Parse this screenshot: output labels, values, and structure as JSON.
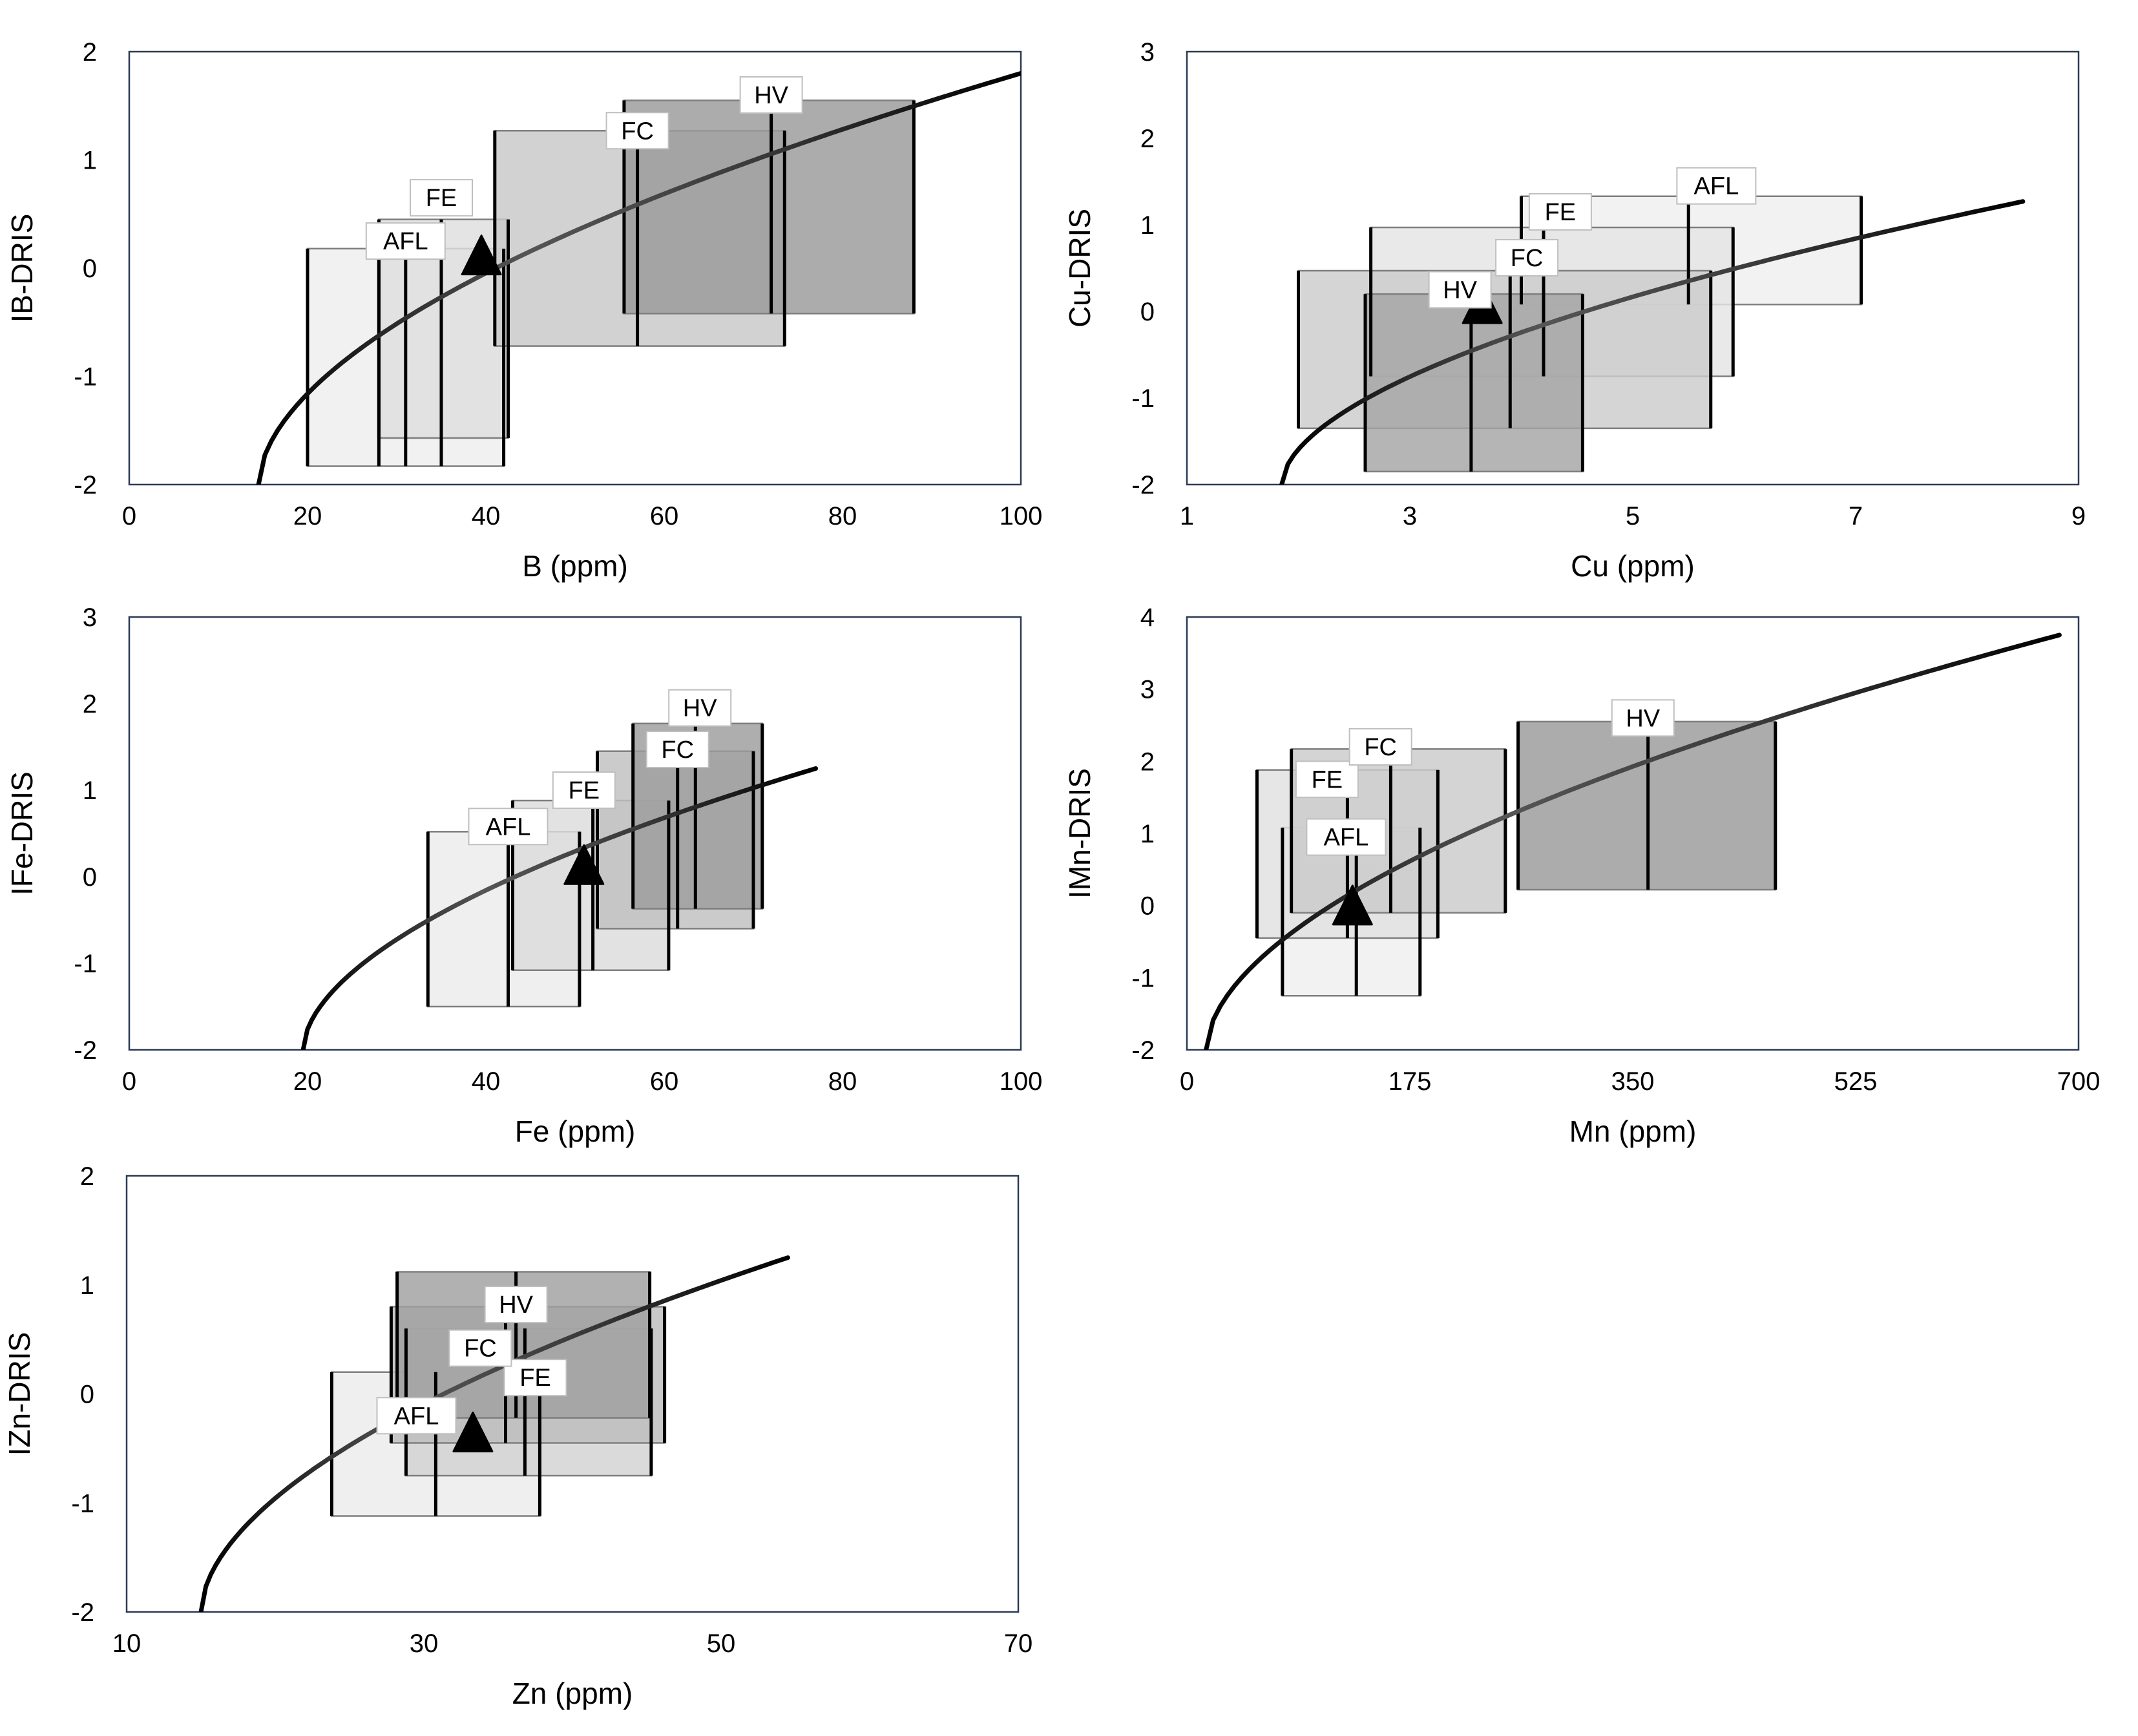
{
  "chart_data": [
    {
      "type": "box-range",
      "panel": "B",
      "xlabel": "B (ppm)",
      "ylabel": "IB-DRIS",
      "xlim": [
        0,
        100
      ],
      "ylim": [
        -2,
        2
      ],
      "xticks": [
        0,
        20,
        40,
        60,
        80,
        100
      ],
      "yticks": [
        -2,
        -1,
        0,
        1,
        2
      ],
      "curve": {
        "x_start": 14.5,
        "x_end": 100,
        "a": 0.57,
        "b": 3.3,
        "c": 0.35
      },
      "marker": {
        "x": 39.5,
        "y": 0.05
      },
      "boxes": [
        {
          "label": "AFL",
          "xmin": 20,
          "xmax": 42,
          "ymin": -1.83,
          "ymax": 0.18,
          "lines": [
            20,
            28,
            31,
            35,
            42
          ],
          "color": "#eeeeee",
          "label_x": 31,
          "label_y": 0.25
        },
        {
          "label": "FE",
          "xmin": 28,
          "xmax": 42.5,
          "ymin": -1.57,
          "ymax": 0.45,
          "lines": [
            28,
            35,
            42.5
          ],
          "color": "#dedede",
          "label_x": 35,
          "label_y": 0.65
        },
        {
          "label": "FC",
          "xmin": 41,
          "xmax": 73.5,
          "ymin": -0.72,
          "ymax": 1.27,
          "lines": [
            41,
            57,
            73.5
          ],
          "color": "#c8c8c8",
          "label_x": 57,
          "label_y": 1.27
        },
        {
          "label": "HV",
          "xmin": 55.5,
          "xmax": 88,
          "ymin": -0.42,
          "ymax": 1.55,
          "lines": [
            55.5,
            72,
            88
          ],
          "color": "#9a9a9a",
          "label_x": 72,
          "label_y": 1.6
        }
      ]
    },
    {
      "type": "box-range",
      "panel": "Cu",
      "xlabel": "Cu (ppm)",
      "ylabel": "Cu-DRIS",
      "xlim": [
        1,
        9
      ],
      "ylim": [
        -2,
        3
      ],
      "xticks": [
        1,
        3,
        5,
        7,
        9
      ],
      "yticks": [
        -2,
        -1,
        0,
        1,
        2,
        3
      ],
      "curve": {
        "x_start": 1.85,
        "x_end": 8.5,
        "a": 0.57,
        "b": 2.88,
        "c": 0.35
      },
      "marker": {
        "x": 3.65,
        "y": 0.0
      },
      "boxes": [
        {
          "label": "AFL",
          "xmin": 4.0,
          "xmax": 7.05,
          "ymin": 0.08,
          "ymax": 1.33,
          "lines": [
            4.0,
            5.5,
            7.05
          ],
          "color": "#efefef",
          "label_x": 5.75,
          "label_y": 1.45
        },
        {
          "label": "FE",
          "xmin": 2.65,
          "xmax": 5.9,
          "ymin": -0.75,
          "ymax": 0.97,
          "lines": [
            2.65,
            4.2,
            5.9
          ],
          "color": "#e4e4e4",
          "label_x": 4.35,
          "label_y": 1.15
        },
        {
          "label": "FC",
          "xmin": 2.0,
          "xmax": 5.7,
          "ymin": -1.35,
          "ymax": 0.47,
          "lines": [
            2.0,
            3.9,
            5.7
          ],
          "color": "#cccccc",
          "label_x": 4.05,
          "label_y": 0.62
        },
        {
          "label": "HV",
          "xmin": 2.6,
          "xmax": 4.55,
          "ymin": -1.85,
          "ymax": 0.2,
          "lines": [
            2.6,
            3.55,
            4.55
          ],
          "color": "#a5a5a5",
          "label_x": 3.45,
          "label_y": 0.25
        }
      ]
    },
    {
      "type": "box-range",
      "panel": "Fe",
      "xlabel": "Fe (ppm)",
      "ylabel": "IFe-DRIS",
      "xlim": [
        0,
        100
      ],
      "ylim": [
        -2,
        3
      ],
      "xticks": [
        0,
        20,
        40,
        60,
        80,
        100
      ],
      "yticks": [
        -2,
        -1,
        0,
        1,
        2,
        3
      ],
      "curve": {
        "x_start": 19.5,
        "x_end": 77,
        "a": 0.57,
        "b": 3.3,
        "c": 0.35
      },
      "marker": {
        "x": 51,
        "y": 0.05
      },
      "boxes": [
        {
          "label": "AFL",
          "xmin": 33.5,
          "xmax": 50.5,
          "ymin": -1.5,
          "ymax": 0.52,
          "lines": [
            33.5,
            42.5,
            50.5
          ],
          "color": "#ececec",
          "label_x": 42.5,
          "label_y": 0.58
        },
        {
          "label": "FE",
          "xmin": 43,
          "xmax": 60.5,
          "ymin": -1.08,
          "ymax": 0.88,
          "lines": [
            43,
            52,
            60.5
          ],
          "color": "#dcdcdc",
          "label_x": 51,
          "label_y": 1.0
        },
        {
          "label": "FC",
          "xmin": 52.5,
          "xmax": 70,
          "ymin": -0.6,
          "ymax": 1.45,
          "lines": [
            52.5,
            61.5,
            70
          ],
          "color": "#c0c0c0",
          "label_x": 61.5,
          "label_y": 1.47
        },
        {
          "label": "HV",
          "xmin": 56.5,
          "xmax": 71,
          "ymin": -0.37,
          "ymax": 1.77,
          "lines": [
            56.5,
            63.5,
            71
          ],
          "color": "#9c9c9c",
          "label_x": 64,
          "label_y": 1.95
        }
      ]
    },
    {
      "type": "box-range",
      "panel": "Mn",
      "xlabel": "Mn (ppm)",
      "ylabel": "IMn-DRIS",
      "xlim": [
        0,
        700
      ],
      "ylim": [
        -2,
        4
      ],
      "xticks": [
        0,
        175,
        350,
        525,
        700
      ],
      "yticks": [
        -2,
        -1,
        0,
        1,
        2,
        3,
        4
      ],
      "curve": {
        "x_start": 15,
        "x_end": 685,
        "a": 0.57,
        "b": 3.3,
        "c": 0.35
      },
      "marker": {
        "x": 130,
        "y": -0.1
      },
      "boxes": [
        {
          "label": "AFL",
          "xmin": 75,
          "xmax": 183,
          "ymin": -1.25,
          "ymax": 1.08,
          "lines": [
            75,
            133,
            183
          ],
          "color": "#efefef",
          "label_x": 125,
          "label_y": 0.95
        },
        {
          "label": "FE",
          "xmin": 55,
          "xmax": 197,
          "ymin": -0.45,
          "ymax": 1.88,
          "lines": [
            55,
            126,
            197
          ],
          "color": "#e0e0e0",
          "label_x": 110,
          "label_y": 1.75
        },
        {
          "label": "FC",
          "xmin": 82,
          "xmax": 250,
          "ymin": -0.1,
          "ymax": 2.17,
          "lines": [
            82,
            160,
            250
          ],
          "color": "#cbcbcb",
          "label_x": 152,
          "label_y": 2.2
        },
        {
          "label": "HV",
          "xmin": 260,
          "xmax": 462,
          "ymin": 0.22,
          "ymax": 2.55,
          "lines": [
            260,
            362,
            462
          ],
          "color": "#9a9a9a",
          "label_x": 358,
          "label_y": 2.6
        }
      ]
    },
    {
      "type": "box-range",
      "panel": "Zn",
      "xlabel": "Zn (ppm)",
      "ylabel": "IZn-DRIS",
      "xlim": [
        10,
        70
      ],
      "ylim": [
        -2,
        2
      ],
      "xticks": [
        10,
        30,
        50,
        70
      ],
      "yticks": [
        -2,
        -1,
        0,
        1,
        2
      ],
      "curve": {
        "x_start": 15,
        "x_end": 54.5,
        "a": 0.57,
        "b": 3.3,
        "c": 0.35
      },
      "marker": {
        "x": 33.3,
        "y": -0.42
      },
      "boxes": [
        {
          "label": "AFL",
          "xmin": 23.8,
          "xmax": 37.8,
          "ymin": -1.12,
          "ymax": 0.2,
          "lines": [
            23.8,
            30.8,
            37.8
          ],
          "color": "#ececec",
          "label_x": 29.5,
          "label_y": -0.2
        },
        {
          "label": "FE",
          "xmin": 28.8,
          "xmax": 45.3,
          "ymin": -0.75,
          "ymax": 0.6,
          "lines": [
            28.8,
            36.8,
            45.3
          ],
          "color": "#d2d2d2",
          "label_x": 37.5,
          "label_y": 0.15
        },
        {
          "label": "FC",
          "xmin": 27.8,
          "xmax": 46.2,
          "ymin": -0.45,
          "ymax": 0.8,
          "lines": [
            27.8,
            35.5,
            46.2
          ],
          "color": "#bcbcbc",
          "label_x": 33.8,
          "label_y": 0.42
        },
        {
          "label": "HV",
          "xmin": 28.2,
          "xmax": 45.2,
          "ymin": -0.22,
          "ymax": 1.12,
          "lines": [
            28.2,
            36.2,
            45.2
          ],
          "color": "#a0a0a0",
          "label_x": 36.2,
          "label_y": 0.82
        }
      ]
    }
  ]
}
